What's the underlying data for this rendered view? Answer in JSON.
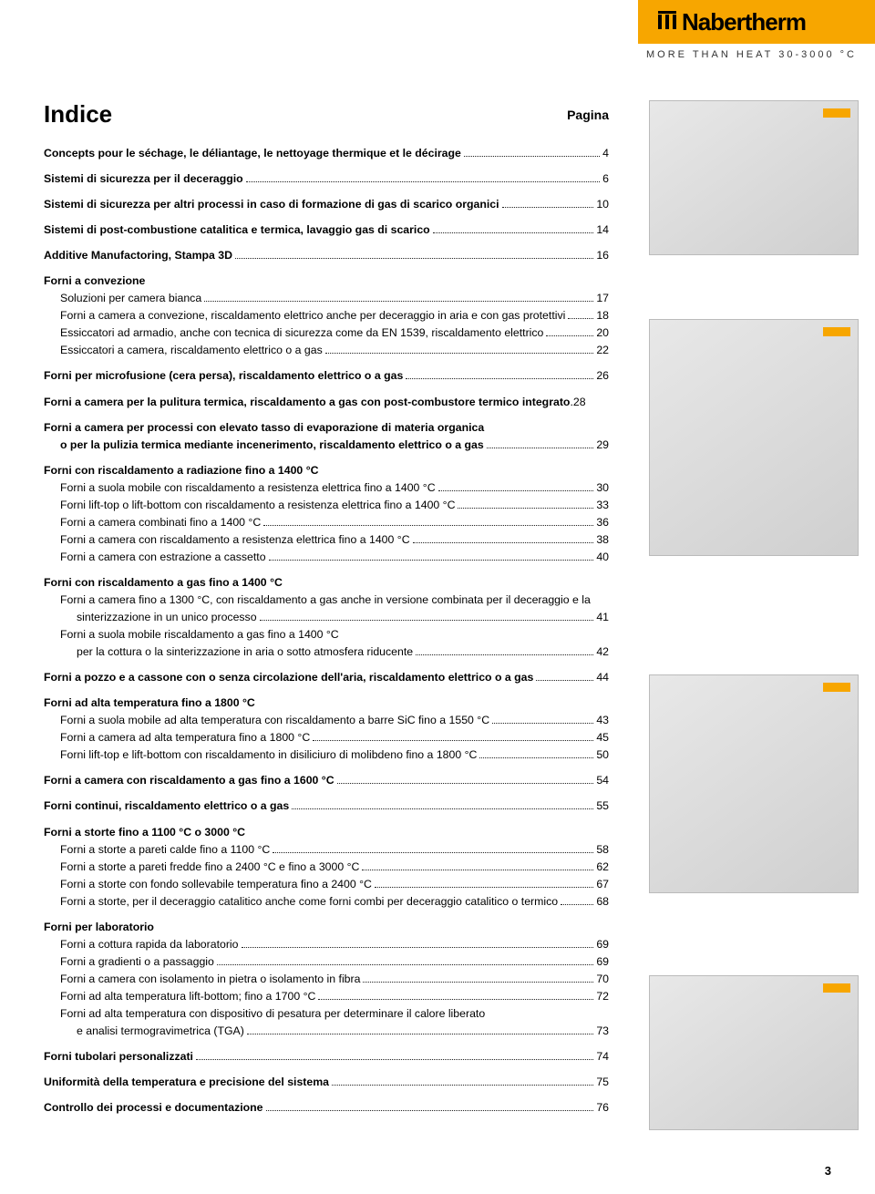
{
  "brand": {
    "name": "Nabertherm",
    "tagline": "MORE THAN HEAT 30-3000 °C"
  },
  "page": {
    "title": "Indice",
    "pagina_label": "Pagina",
    "number": "3"
  },
  "toc": [
    {
      "type": "section",
      "lines": [
        {
          "bold": true,
          "label": "Concepts pour le séchage, le déliantage, le nettoyage thermique et le décirage",
          "page": "4"
        }
      ]
    },
    {
      "type": "section",
      "lines": [
        {
          "bold": true,
          "label": "Sistemi di sicurezza per il deceraggio",
          "page": "6"
        }
      ]
    },
    {
      "type": "section",
      "lines": [
        {
          "bold": true,
          "label": "Sistemi di sicurezza per altri processi in caso di formazione di gas di scarico organici",
          "page": "10"
        }
      ]
    },
    {
      "type": "section",
      "lines": [
        {
          "bold": true,
          "label": "Sistemi di post-combustione catalitica e termica, lavaggio gas di scarico",
          "page": "14"
        }
      ]
    },
    {
      "type": "section",
      "lines": [
        {
          "bold": true,
          "label": "Additive Manufactoring, Stampa 3D",
          "page": "16"
        }
      ]
    },
    {
      "type": "section",
      "lines": [
        {
          "bold": true,
          "heading": true,
          "label": "Forni a convezione"
        },
        {
          "indent": 1,
          "label": "Soluzioni per camera bianca",
          "page": "17"
        },
        {
          "indent": 1,
          "label": "Forni a camera a convezione, riscaldamento elettrico anche per deceraggio in aria e con gas protettivi",
          "page": "18"
        },
        {
          "indent": 1,
          "label": "Essiccatori ad armadio, anche con tecnica di sicurezza come da EN 1539, riscaldamento elettrico",
          "page": "20"
        },
        {
          "indent": 1,
          "label": "Essiccatori a camera, riscaldamento elettrico o a gas",
          "page": "22"
        }
      ]
    },
    {
      "type": "section",
      "lines": [
        {
          "bold": true,
          "label": "Forni per microfusione (cera persa), riscaldamento elettrico o a gas",
          "page": "26"
        }
      ]
    },
    {
      "type": "section",
      "lines": [
        {
          "bold": true,
          "label": "Forni a camera per la pulitura termica, riscaldamento a gas con post-combustore termico integrato",
          "page": "28",
          "nodots": true
        }
      ]
    },
    {
      "type": "section",
      "lines": [
        {
          "bold": true,
          "heading": true,
          "label": "Forni a camera per processi con elevato tasso di evaporazione di materia organica"
        },
        {
          "bold": true,
          "indent": 1,
          "label": "o per la pulizia termica mediante incenerimento, riscaldamento elettrico o a gas",
          "page": "29"
        }
      ]
    },
    {
      "type": "section",
      "lines": [
        {
          "bold": true,
          "heading": true,
          "label": "Forni con riscaldamento a radiazione fino a 1400 °C"
        },
        {
          "indent": 1,
          "label": "Forni a suola mobile con riscaldamento a resistenza elettrica fino a 1400 °C",
          "page": "30"
        },
        {
          "indent": 1,
          "label": "Forni lift-top o lift-bottom con riscaldamento a resistenza elettrica fino a 1400 °C",
          "page": "33"
        },
        {
          "indent": 1,
          "label": "Forni a camera combinati fino a 1400 °C",
          "page": "36"
        },
        {
          "indent": 1,
          "label": "Forni a camera con riscaldamento a resistenza elettrica fino a 1400 °C",
          "page": "38"
        },
        {
          "indent": 1,
          "label": "Forni a camera con estrazione a cassetto",
          "page": "40"
        }
      ]
    },
    {
      "type": "section",
      "lines": [
        {
          "bold": true,
          "heading": true,
          "label": "Forni con riscaldamento a gas fino a 1400 °C"
        },
        {
          "indent": 1,
          "heading": true,
          "label": "Forni a camera fino a 1300 °C, con riscaldamento a gas anche in versione combinata per il deceraggio e la"
        },
        {
          "indent": 2,
          "label": "sinterizzazione in un unico processo",
          "page": "41"
        },
        {
          "indent": 1,
          "heading": true,
          "label": "Forni a suola mobile riscaldamento a gas fino a 1400 °C"
        },
        {
          "indent": 2,
          "label": "per la cottura o la sinterizzazione in aria o sotto atmosfera riducente",
          "page": "42"
        }
      ]
    },
    {
      "type": "section",
      "lines": [
        {
          "bold": true,
          "label": "Forni a pozzo e a cassone con o senza circolazione dell'aria, riscaldamento elettrico o a gas",
          "page": "44"
        }
      ]
    },
    {
      "type": "section",
      "lines": [
        {
          "bold": true,
          "heading": true,
          "label": "Forni ad alta temperatura fino a 1800 °C"
        },
        {
          "indent": 1,
          "label": "Forni a suola mobile ad alta temperatura con riscaldamento a barre SiC fino a 1550 °C",
          "page": "43"
        },
        {
          "indent": 1,
          "label": "Forni a camera ad alta temperatura fino a 1800 °C",
          "page": "45"
        },
        {
          "indent": 1,
          "label": "Forni lift-top e lift-bottom con riscaldamento in disiliciuro di molibdeno fino a 1800 °C",
          "page": "50"
        }
      ]
    },
    {
      "type": "section",
      "lines": [
        {
          "bold": true,
          "label": "Forni a camera con riscaldamento a gas fino a 1600 °C",
          "page": "54"
        }
      ]
    },
    {
      "type": "section",
      "lines": [
        {
          "bold": true,
          "label": "Forni continui, riscaldamento elettrico o a gas",
          "page": "55"
        }
      ]
    },
    {
      "type": "section",
      "lines": [
        {
          "bold": true,
          "heading": true,
          "label": "Forni a storte fino a 1100 °C o 3000 °C"
        },
        {
          "indent": 1,
          "label": "Forni a storte a pareti calde fino a 1100 °C",
          "page": "58"
        },
        {
          "indent": 1,
          "label": "Forni a storte a pareti fredde fino a  2400 °C e fino a 3000 °C",
          "page": "62"
        },
        {
          "indent": 1,
          "label": "Forni a storte con fondo sollevabile temperatura fino a 2400 °C",
          "page": "67"
        },
        {
          "indent": 1,
          "label": "Forni a storte, per il deceraggio catalitico anche come forni combi per deceraggio catalitico o termico",
          "page": "68"
        }
      ]
    },
    {
      "type": "section",
      "lines": [
        {
          "bold": true,
          "heading": true,
          "label": "Forni per laboratorio"
        },
        {
          "indent": 1,
          "label": "Forni a cottura rapida da laboratorio",
          "page": "69"
        },
        {
          "indent": 1,
          "label": "Forni a gradienti o a passaggio",
          "page": "69"
        },
        {
          "indent": 1,
          "label": "Forni a camera con isolamento in pietra o isolamento in fibra",
          "page": "70"
        },
        {
          "indent": 1,
          "label": "Forni ad alta temperatura lift-bottom; fino a 1700 °C",
          "page": "72"
        },
        {
          "indent": 1,
          "heading": true,
          "label": "Forni ad alta temperatura con dispositivo di pesatura per determinare il calore liberato"
        },
        {
          "indent": 2,
          "label": "e analisi termogravimetrica (TGA)",
          "page": "73"
        }
      ]
    },
    {
      "type": "section",
      "lines": [
        {
          "bold": true,
          "label": "Forni tubolari personalizzati",
          "page": "74"
        }
      ]
    },
    {
      "type": "section",
      "lines": [
        {
          "bold": true,
          "label": "Uniformità della temperatura e precisione del sistema",
          "page": "75"
        }
      ]
    },
    {
      "type": "section",
      "lines": [
        {
          "bold": true,
          "label": "Controllo dei processi e documentazione",
          "page": "76"
        }
      ]
    }
  ]
}
